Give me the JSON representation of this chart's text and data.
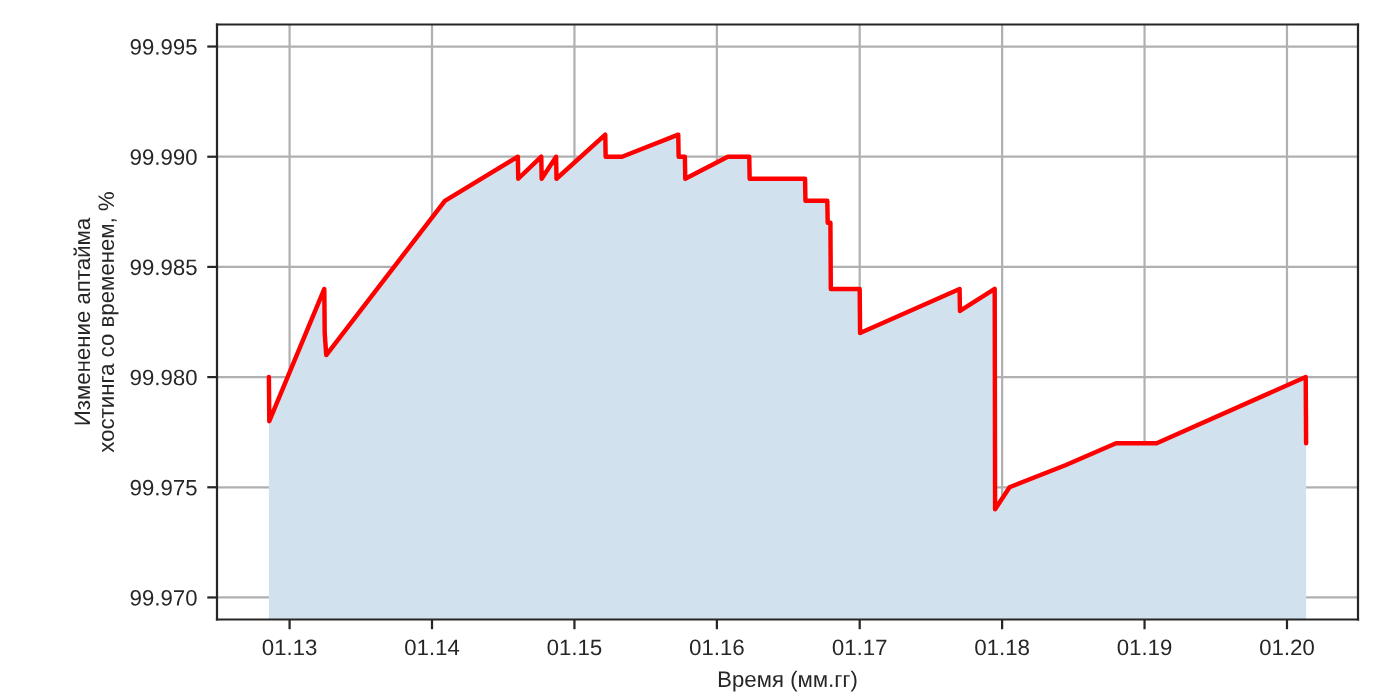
{
  "chart_data": {
    "type": "area",
    "xlabel": "Время (мм.гг)",
    "ylabel": "Изменение аптайма\nхостинга со временем, %",
    "x": [
      "2012-11-09",
      "2012-11-10",
      "2013-03-31",
      "2013-04-01",
      "2013-04-05",
      "2014-02-03",
      "2014-08-09",
      "2014-08-10",
      "2014-10-08",
      "2014-10-09",
      "2014-11-15",
      "2014-11-16",
      "2015-03-21",
      "2015-03-22",
      "2015-05-03",
      "2015-09-24",
      "2015-09-25",
      "2015-10-11",
      "2015-10-12",
      "2016-01-29",
      "2016-03-24",
      "2016-03-25",
      "2016-08-14",
      "2016-08-15",
      "2016-10-10",
      "2016-10-11",
      "2016-10-18",
      "2016-10-19",
      "2017-01-01",
      "2017-01-02",
      "2017-09-14",
      "2017-09-15",
      "2017-12-13",
      "2017-12-14",
      "2018-01-20",
      "2018-06-12",
      "2018-10-20",
      "2019-02-01",
      "2020-02-18",
      "2020-02-19"
    ],
    "series": [
      {
        "color": "#ff0000",
        "values": [
          99.98,
          99.978,
          99.984,
          99.982,
          99.981,
          99.988,
          99.99,
          99.989,
          99.99,
          99.989,
          99.99,
          99.989,
          99.991,
          99.99,
          99.99,
          99.991,
          99.99,
          99.99,
          99.989,
          99.99,
          99.99,
          99.989,
          99.989,
          99.988,
          99.988,
          99.987,
          99.987,
          99.984,
          99.984,
          99.982,
          99.984,
          99.983,
          99.984,
          99.974,
          99.975,
          99.976,
          99.977,
          99.977,
          99.98,
          99.977
        ]
      }
    ],
    "xlim": [
      "2012-06-29",
      "2020-07-01"
    ],
    "ylim": [
      99.969,
      99.996
    ],
    "xticks": [
      {
        "value": "2013-01",
        "label": "01.13"
      },
      {
        "value": "2014-01",
        "label": "01.14"
      },
      {
        "value": "2015-01",
        "label": "01.15"
      },
      {
        "value": "2016-01",
        "label": "01.16"
      },
      {
        "value": "2017-01",
        "label": "01.17"
      },
      {
        "value": "2018-01",
        "label": "01.18"
      },
      {
        "value": "2019-01",
        "label": "01.19"
      },
      {
        "value": "2020-01",
        "label": "01.20"
      }
    ],
    "yticks": [
      {
        "value": 99.97,
        "label": "99.970"
      },
      {
        "value": 99.975,
        "label": "99.975"
      },
      {
        "value": 99.98,
        "label": "99.980"
      },
      {
        "value": 99.985,
        "label": "99.985"
      },
      {
        "value": 99.99,
        "label": "99.990"
      },
      {
        "value": 99.995,
        "label": "99.995"
      }
    ],
    "grid": true
  }
}
